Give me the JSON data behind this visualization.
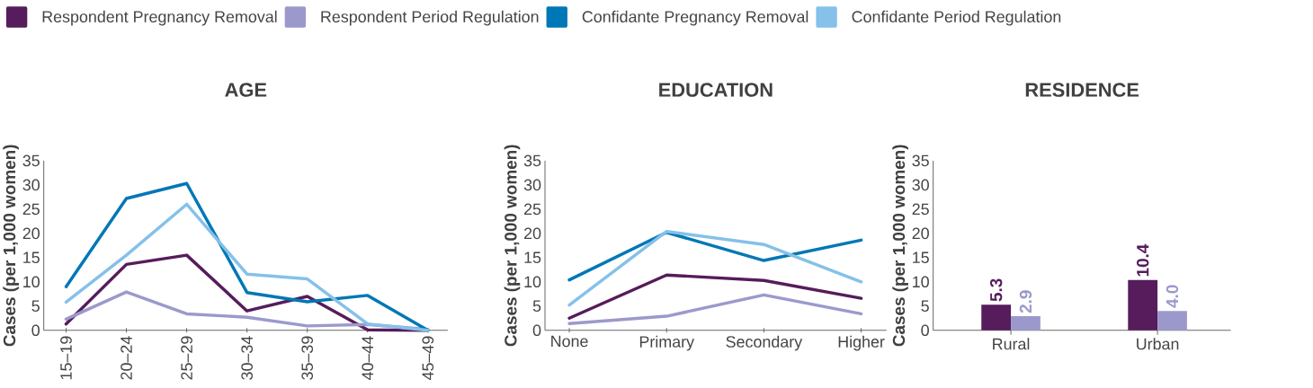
{
  "chart_data": [
    {
      "type": "line",
      "title": "AGE",
      "ylabel": "Cases (per 1,000 women)",
      "categories": [
        "15–19",
        "20–24",
        "25–29",
        "30–34",
        "35–39",
        "40–44",
        "45–49"
      ],
      "ylim": [
        0,
        35
      ],
      "yticks": [
        0,
        5,
        10,
        15,
        20,
        25,
        30,
        35
      ],
      "legend": "top",
      "series": [
        {
          "name": "Respondent Pregnancy Removal",
          "color": "#561c5b",
          "values": [
            1.3,
            13.6,
            15.5,
            4.0,
            7.0,
            0.1,
            0
          ]
        },
        {
          "name": "Respondent Period Regulation",
          "color": "#9b99cc",
          "values": [
            2.3,
            7.9,
            3.4,
            2.7,
            0.9,
            1.2,
            0.2
          ]
        },
        {
          "name": "Confidante Pregnancy Removal",
          "color": "#0077b6",
          "values": [
            9.0,
            27.2,
            30.3,
            7.8,
            5.9,
            7.2,
            0
          ]
        },
        {
          "name": "Confidante Period Regulation",
          "color": "#85c1e9",
          "values": [
            5.8,
            15.5,
            26.0,
            11.6,
            10.6,
            1.3,
            0
          ]
        }
      ]
    },
    {
      "type": "line",
      "title": "EDUCATION",
      "ylabel": "Cases (per 1,000 women)",
      "categories": [
        "None",
        "Primary",
        "Secondary",
        "Higher"
      ],
      "ylim": [
        0,
        35
      ],
      "yticks": [
        0,
        5,
        10,
        15,
        20,
        25,
        30,
        35
      ],
      "series": [
        {
          "color": "#561c5b",
          "values": [
            2.5,
            11.4,
            10.3,
            6.6
          ]
        },
        {
          "color": "#9b99cc",
          "values": [
            1.4,
            2.9,
            7.3,
            3.4
          ]
        },
        {
          "color": "#0077b6",
          "values": [
            10.4,
            20.2,
            14.4,
            18.6
          ]
        },
        {
          "color": "#85c1e9",
          "values": [
            5.2,
            20.4,
            17.7,
            10.0
          ]
        }
      ]
    },
    {
      "type": "bar",
      "title": "RESIDENCE",
      "ylabel": "Cases (per 1,000 women)",
      "categories": [
        "Rural",
        "Urban"
      ],
      "ylim": [
        0,
        35
      ],
      "yticks": [
        0,
        5,
        10,
        15,
        20,
        25,
        30,
        35
      ],
      "series": [
        {
          "color": "#561c5b",
          "values": [
            5.3,
            10.4
          ],
          "value_labels": [
            "5.3",
            "10.4"
          ]
        },
        {
          "color": "#9b99cc",
          "values": [
            2.9,
            4.0
          ],
          "value_labels": [
            "2.9",
            "4.0"
          ]
        }
      ]
    }
  ]
}
